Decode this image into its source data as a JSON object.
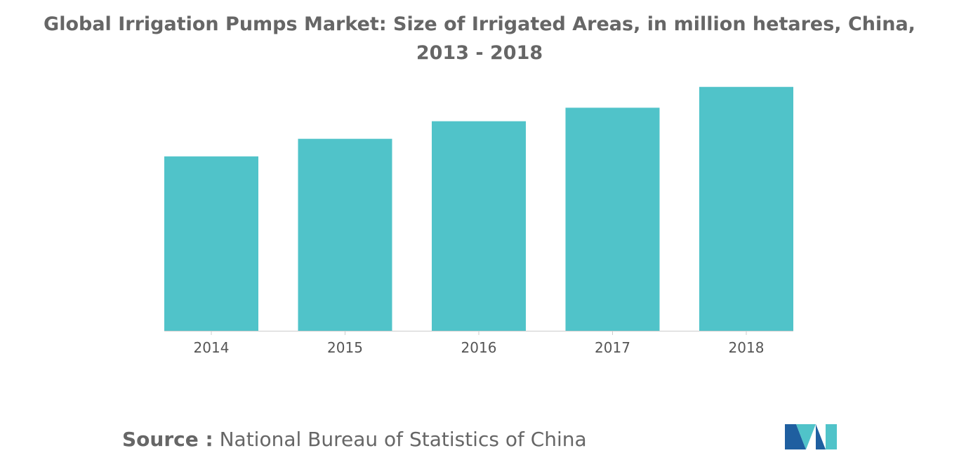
{
  "chart_data": {
    "type": "bar",
    "title": "Global Irrigation Pumps Market: Size of Irrigated Areas, in million hetares, China, 2013 - 2018",
    "categories": [
      "2014",
      "2015",
      "2016",
      "2017",
      "2018"
    ],
    "values": [
      64.5,
      71.0,
      77.5,
      82.5,
      90.2
    ],
    "xlabel": "",
    "ylabel": "",
    "ylim": [
      0,
      100
    ],
    "grid": false,
    "legend": "none",
    "bar_color": "#50C3C9"
  },
  "source": {
    "label": "Source :",
    "text": "National Bureau of Statistics of China"
  },
  "logo": {
    "icon": "mordor-intelligence-logo-icon",
    "colors": [
      "#1F5FA0",
      "#50C3C9"
    ]
  }
}
